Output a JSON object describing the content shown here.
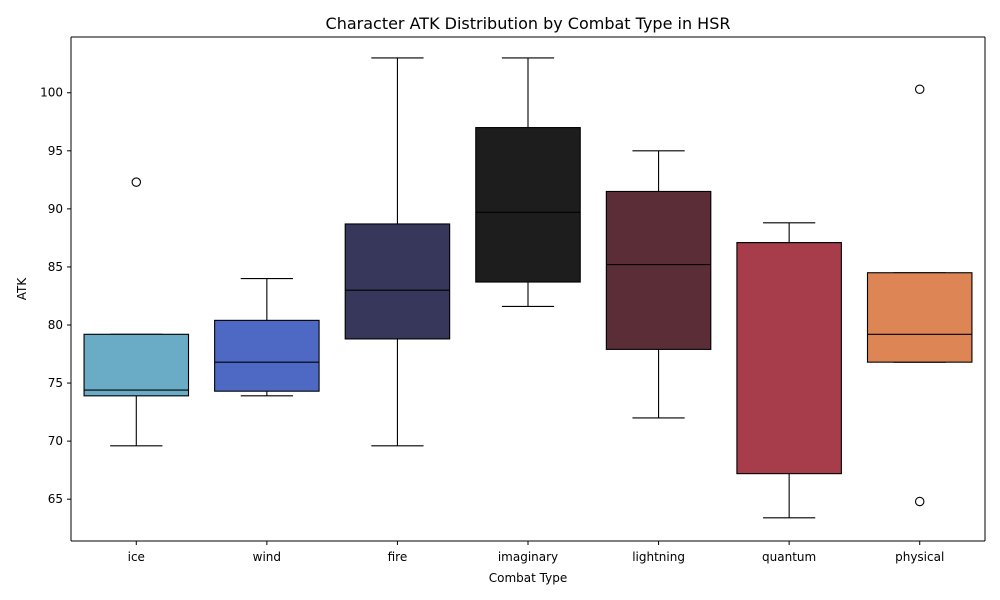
{
  "chart_data": {
    "type": "box",
    "title": "Character ATK Distribution by Combat Type in HSR",
    "xlabel": "Combat Type",
    "ylabel": "ATK",
    "ylim": [
      61.4,
      104.8
    ],
    "yticks": [
      65,
      70,
      75,
      80,
      85,
      90,
      95,
      100
    ],
    "grid": false,
    "legend": "none",
    "categories": [
      "ice",
      "wind",
      "fire",
      "imaginary",
      "lightning",
      "quantum",
      "physical"
    ],
    "boxes": [
      {
        "name": "ice",
        "color": "#6aabc6",
        "whisker_low": 69.6,
        "q1": 73.9,
        "median": 74.4,
        "q3": 79.2,
        "whisker_high": 79.2,
        "outliers": [
          92.3
        ]
      },
      {
        "name": "wind",
        "color": "#4e69c4",
        "whisker_low": 73.9,
        "q1": 74.3,
        "median": 76.8,
        "q3": 80.4,
        "whisker_high": 84.0,
        "outliers": []
      },
      {
        "name": "fire",
        "color": "#37365b",
        "whisker_low": 69.6,
        "q1": 78.8,
        "median": 83.0,
        "q3": 88.7,
        "whisker_high": 103.0,
        "outliers": []
      },
      {
        "name": "imaginary",
        "color": "#1d1d1d",
        "whisker_low": 81.6,
        "q1": 83.7,
        "median": 89.7,
        "q3": 97.0,
        "whisker_high": 103.0,
        "outliers": []
      },
      {
        "name": "lightning",
        "color": "#5a2d37",
        "whisker_low": 72.0,
        "q1": 77.9,
        "median": 85.2,
        "q3": 91.5,
        "whisker_high": 95.0,
        "outliers": []
      },
      {
        "name": "quantum",
        "color": "#a73c4a",
        "whisker_low": 63.4,
        "q1": 67.2,
        "median": 87.1,
        "q3": 87.1,
        "whisker_high": 88.8,
        "outliers": []
      },
      {
        "name": "physical",
        "color": "#dd8554",
        "whisker_low": 76.8,
        "q1": 76.8,
        "median": 79.2,
        "q3": 84.5,
        "whisker_high": 84.5,
        "outliers": [
          100.3,
          64.8
        ]
      }
    ]
  }
}
